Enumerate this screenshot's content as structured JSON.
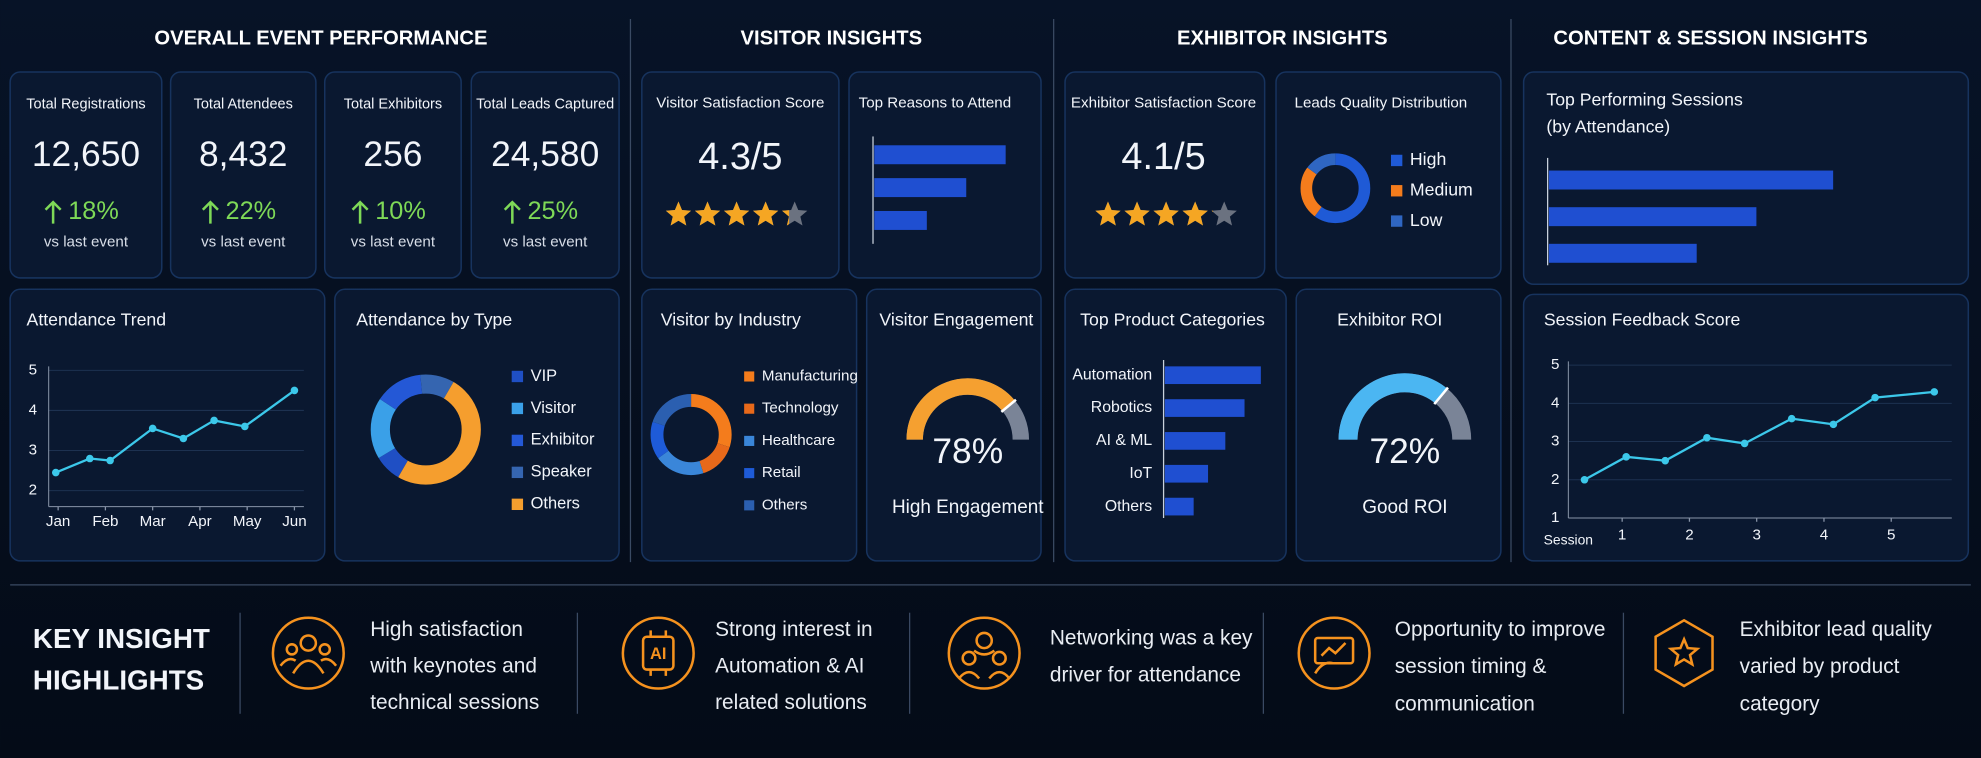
{
  "sections": {
    "overall": "OVERALL EVENT PERFORMANCE",
    "visitor": "VISITOR INSIGHTS",
    "exhibitor": "EXHIBITOR INSIGHTS",
    "content": "CONTENT & SESSION INSIGHTS"
  },
  "kpis": [
    {
      "label": "Total Registrations",
      "value": "12,650",
      "change": "18%",
      "note": "vs last event"
    },
    {
      "label": "Total Attendees",
      "value": "8,432",
      "change": "22%",
      "note": "vs last event"
    },
    {
      "label": "Total Exhibitors",
      "value": "256",
      "change": "10%",
      "note": "vs last event"
    },
    {
      "label": "Total Leads Captured",
      "value": "24,580",
      "change": "25%",
      "note": "vs last event"
    }
  ],
  "ratings": {
    "visitor": {
      "title": "Visitor Satisfaction Score",
      "score": "4.3/5",
      "stars": 4.3,
      "scale_max": 5
    },
    "exhibitor": {
      "title": "Exhibitor Satisfaction Score",
      "score": "4.1/5",
      "stars": 4.1,
      "scale_max": 5
    }
  },
  "charts": {
    "attendance_trend": {
      "type": "line",
      "title": "Attendance Trend",
      "x": [
        0.95,
        1.67,
        2.1,
        3.0,
        3.65,
        4.3,
        4.95,
        6.0
      ],
      "values": [
        2.45,
        2.8,
        2.75,
        3.55,
        3.3,
        3.75,
        3.6,
        4.5
      ],
      "color": "#3cc8ea",
      "xlim": [
        0.8,
        6.2
      ],
      "xticks": [
        {
          "value": 1,
          "label": "Jan"
        },
        {
          "value": 2,
          "label": "Feb"
        },
        {
          "value": 3,
          "label": "Mar"
        },
        {
          "value": 4,
          "label": "Apr"
        },
        {
          "value": 5,
          "label": "May"
        },
        {
          "value": 6,
          "label": "Jun"
        }
      ],
      "ylim": [
        1.6,
        5.1
      ],
      "yticks": [
        2,
        3,
        4,
        5
      ],
      "grid": true
    },
    "attendance_by_type": {
      "type": "donut",
      "title": "Attendance by Type",
      "categories": [
        "VIP",
        "Visitor",
        "Exhibitor",
        "Speaker",
        "Others"
      ],
      "values": [
        8,
        18,
        14,
        10,
        50
      ],
      "colors": [
        "#1f4fc4",
        "#3aa0e8",
        "#2458d6",
        "#3565b0",
        "#f59e2e"
      ]
    },
    "top_reasons": {
      "type": "bar",
      "title": "Top Reasons to Attend",
      "values": [
        100,
        70,
        40
      ],
      "color": "#1f4fd1"
    },
    "visitor_by_industry": {
      "type": "donut",
      "title": "Visitor by Industry",
      "categories": [
        "Manufacturing",
        "Technology",
        "Healthcare",
        "Retail",
        "Others"
      ],
      "values": [
        30,
        15,
        20,
        15,
        20
      ],
      "colors": [
        "#f47c1c",
        "#e8691a",
        "#3a86d9",
        "#1e5bd8",
        "#2b5fb0"
      ]
    },
    "visitor_engagement": {
      "type": "gauge",
      "title": "Visitor Engagement",
      "values": [
        78
      ],
      "value_labels": [
        "78%"
      ],
      "caption": "High Engagement",
      "ylim": [
        0,
        100
      ],
      "color": "#f5a030"
    },
    "leads_quality": {
      "type": "donut",
      "title": "Leads Quality Distribution",
      "categories": [
        "High",
        "Medium",
        "Low"
      ],
      "values": [
        60,
        25,
        15
      ],
      "colors": [
        "#1f5ad6",
        "#f47c1c",
        "#2f66c2"
      ]
    },
    "top_product_categories": {
      "type": "bar",
      "title": "Top Product Categories",
      "categories": [
        "Automation",
        "Robotics",
        "AI & ML",
        "IoT",
        "Others"
      ],
      "values": [
        100,
        83,
        63,
        45,
        30
      ],
      "color": "#1f4fd1"
    },
    "exhibitor_roi": {
      "type": "gauge",
      "title": "Exhibitor ROI",
      "values": [
        72
      ],
      "value_labels": [
        "72%"
      ],
      "caption": "Good ROI",
      "ylim": [
        0,
        100
      ],
      "color": "#4bb6f2"
    },
    "top_sessions": {
      "type": "bar",
      "title": [
        "Top Performing Sessions",
        "(by Attendance)"
      ],
      "values": [
        100,
        73,
        52
      ],
      "color": "#1f4fd1"
    },
    "session_feedback": {
      "type": "line",
      "title": "Session Feedback Score",
      "xlabel": "Session",
      "x": [
        0.44,
        1.06,
        1.64,
        2.26,
        2.82,
        3.52,
        4.14,
        4.76,
        5.64
      ],
      "values": [
        2.0,
        2.6,
        2.5,
        3.1,
        2.95,
        3.6,
        3.45,
        4.15,
        4.3
      ],
      "color": "#3cc8ea",
      "xlim": [
        0.2,
        5.9
      ],
      "xticks": [
        1,
        2,
        3,
        4,
        5
      ],
      "ylim": [
        1,
        5.1
      ],
      "yticks": [
        1,
        2,
        3,
        4,
        5
      ],
      "grid": true
    }
  },
  "insights": {
    "title": [
      "KEY INSIGHT",
      "HIGHLIGHTS"
    ],
    "items": [
      {
        "lines": [
          "High satisfaction",
          "with keynotes and",
          "technical sessions"
        ]
      },
      {
        "icon_text": "AI",
        "lines": [
          "Strong interest in",
          "Automation & AI",
          "related solutions"
        ]
      },
      {
        "lines": [
          "Networking was a key",
          "driver for attendance"
        ]
      },
      {
        "lines": [
          "Opportunity to improve",
          "session timing &",
          "communication"
        ]
      },
      {
        "lines": [
          "Exhibitor lead quality",
          "varied by product",
          "category"
        ]
      }
    ]
  }
}
